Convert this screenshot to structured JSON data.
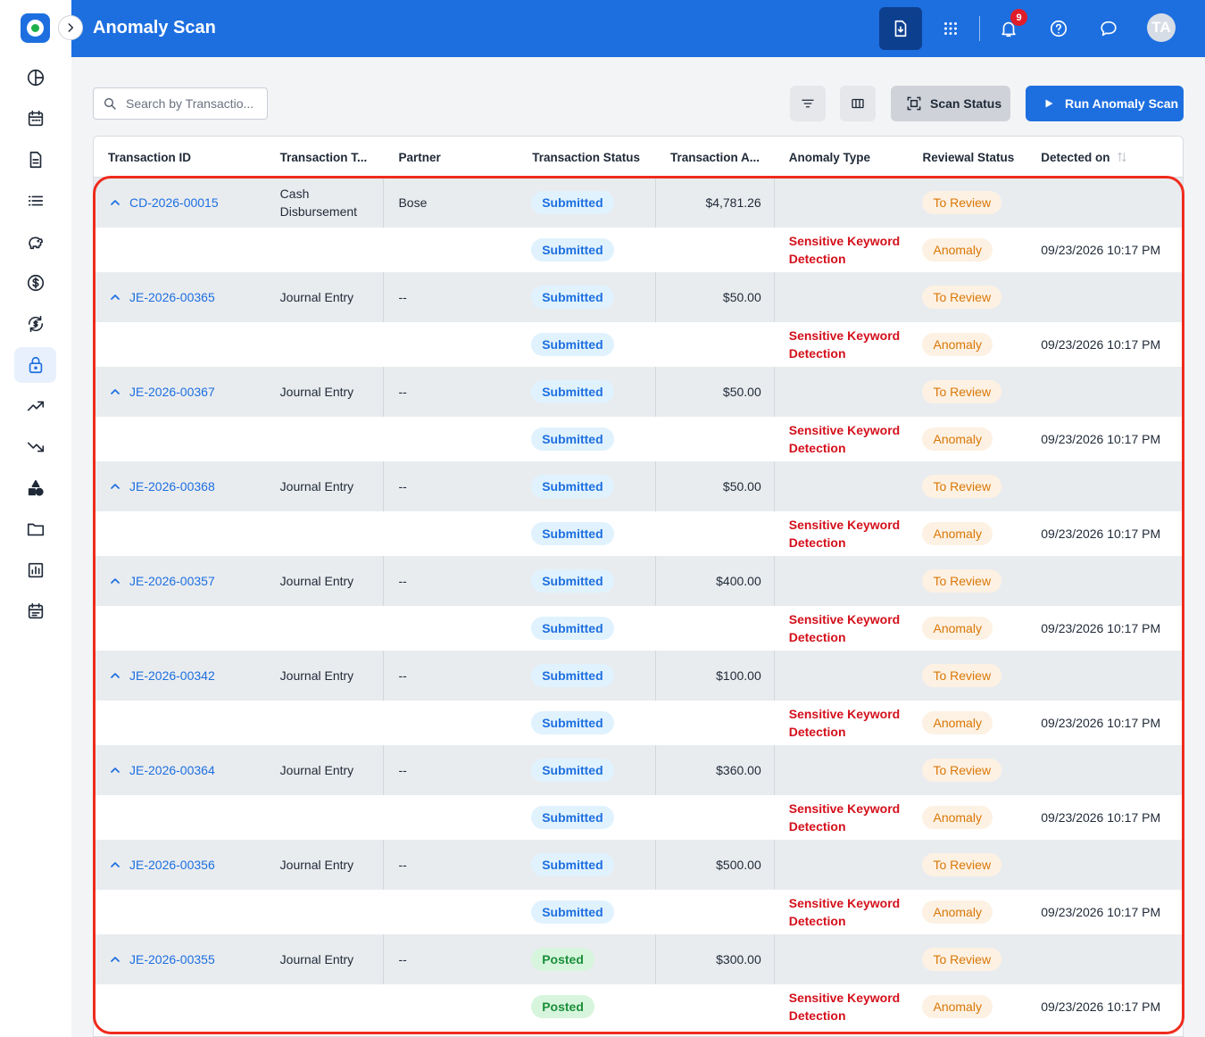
{
  "header": {
    "title": "Anomaly Scan",
    "notification_count": "9",
    "avatar_initials": "TA"
  },
  "toolbar": {
    "search_placeholder": "Search by Transactio...",
    "scan_status_label": "Scan Status",
    "run_scan_label": "Run Anomaly Scan"
  },
  "table": {
    "columns": [
      "Transaction ID",
      "Transaction T...",
      "Partner",
      "Transaction Status",
      "Transaction A...",
      "Anomaly Type",
      "Reviewal Status",
      "Detected on"
    ],
    "rows": [
      {
        "id": "CD-2026-00015",
        "type": "Cash Disbursement",
        "partner": "Bose",
        "status": "Submitted",
        "amount": "$4,781.26",
        "review": "To Review",
        "child": {
          "status": "Submitted",
          "anomaly_type": "Sensitive Keyword Detection",
          "review": "Anomaly",
          "detected": "09/23/2026 10:17 PM"
        }
      },
      {
        "id": "JE-2026-00365",
        "type": "Journal Entry",
        "partner": "--",
        "status": "Submitted",
        "amount": "$50.00",
        "review": "To Review",
        "child": {
          "status": "Submitted",
          "anomaly_type": "Sensitive Keyword Detection",
          "review": "Anomaly",
          "detected": "09/23/2026 10:17 PM"
        }
      },
      {
        "id": "JE-2026-00367",
        "type": "Journal Entry",
        "partner": "--",
        "status": "Submitted",
        "amount": "$50.00",
        "review": "To Review",
        "child": {
          "status": "Submitted",
          "anomaly_type": "Sensitive Keyword Detection",
          "review": "Anomaly",
          "detected": "09/23/2026 10:17 PM"
        }
      },
      {
        "id": "JE-2026-00368",
        "type": "Journal Entry",
        "partner": "--",
        "status": "Submitted",
        "amount": "$50.00",
        "review": "To Review",
        "child": {
          "status": "Submitted",
          "anomaly_type": "Sensitive Keyword Detection",
          "review": "Anomaly",
          "detected": "09/23/2026 10:17 PM"
        }
      },
      {
        "id": "JE-2026-00357",
        "type": "Journal Entry",
        "partner": "--",
        "status": "Submitted",
        "amount": "$400.00",
        "review": "To Review",
        "child": {
          "status": "Submitted",
          "anomaly_type": "Sensitive Keyword Detection",
          "review": "Anomaly",
          "detected": "09/23/2026 10:17 PM"
        }
      },
      {
        "id": "JE-2026-00342",
        "type": "Journal Entry",
        "partner": "--",
        "status": "Submitted",
        "amount": "$100.00",
        "review": "To Review",
        "child": {
          "status": "Submitted",
          "anomaly_type": "Sensitive Keyword Detection",
          "review": "Anomaly",
          "detected": "09/23/2026 10:17 PM"
        }
      },
      {
        "id": "JE-2026-00364",
        "type": "Journal Entry",
        "partner": "--",
        "status": "Submitted",
        "amount": "$360.00",
        "review": "To Review",
        "child": {
          "status": "Submitted",
          "anomaly_type": "Sensitive Keyword Detection",
          "review": "Anomaly",
          "detected": "09/23/2026 10:17 PM"
        }
      },
      {
        "id": "JE-2026-00356",
        "type": "Journal Entry",
        "partner": "--",
        "status": "Submitted",
        "amount": "$500.00",
        "review": "To Review",
        "child": {
          "status": "Submitted",
          "anomaly_type": "Sensitive Keyword Detection",
          "review": "Anomaly",
          "detected": "09/23/2026 10:17 PM"
        }
      },
      {
        "id": "JE-2026-00355",
        "type": "Journal Entry",
        "partner": "--",
        "status": "Posted",
        "amount": "$300.00",
        "review": "To Review",
        "child": {
          "status": "Posted",
          "anomaly_type": "Sensitive Keyword Detection",
          "review": "Anomaly",
          "detected": "09/23/2026 10:17 PM"
        }
      }
    ]
  },
  "colors": {
    "primary": "#1d6fe0",
    "header_dark_button": "#0d3f8f",
    "anomaly_red": "#d4101b",
    "review_orange": "#d97706",
    "posted_green": "#1a8f39",
    "highlight": "#ef2b1d"
  }
}
